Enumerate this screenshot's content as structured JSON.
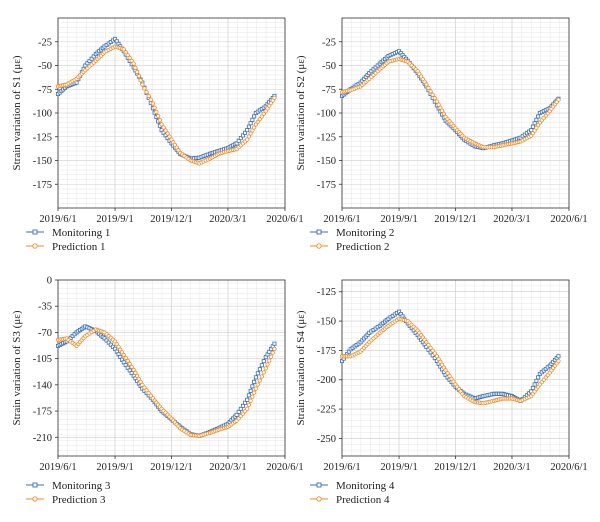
{
  "chart_data": [
    {
      "type": "line",
      "ylabel": "Strain variation of S1 (με)",
      "xlabel": "",
      "x_ticks": [
        "2019/6/1",
        "2019/9/1",
        "2019/12/1",
        "2020/3/1",
        "2020/6/1"
      ],
      "x_range": [
        "2019/6/1",
        "2020/6/1"
      ],
      "y_ticks": [
        -25,
        -50,
        -75,
        -100,
        -125,
        -150,
        -175
      ],
      "ylim": [
        -200,
        0
      ],
      "grid": true,
      "legend_position": "bottom-left",
      "series": [
        {
          "name": "Monitoring 1",
          "color": "#3a6fb5",
          "marker": "square",
          "x": [
            "2019/6/1",
            "2019/6/15",
            "2019/7/1",
            "2019/7/15",
            "2019/8/1",
            "2019/8/15",
            "2019/9/1",
            "2019/9/15",
            "2019/10/1",
            "2019/10/15",
            "2019/11/1",
            "2019/11/15",
            "2019/12/1",
            "2019/12/15",
            "2020/1/1",
            "2020/1/15",
            "2020/2/1",
            "2020/2/15",
            "2020/3/1",
            "2020/3/15",
            "2020/4/1",
            "2020/4/15",
            "2020/5/1",
            "2020/5/15"
          ],
          "y": [
            -80,
            -72,
            -68,
            -50,
            -38,
            -30,
            -22,
            -35,
            -52,
            -68,
            -95,
            -118,
            -132,
            -143,
            -148,
            -147,
            -143,
            -140,
            -137,
            -132,
            -118,
            -100,
            -93,
            -82
          ]
        },
        {
          "name": "Prediction 1",
          "color": "#f08a24",
          "marker": "circle",
          "x": [
            "2019/6/1",
            "2019/6/15",
            "2019/7/1",
            "2019/7/15",
            "2019/8/1",
            "2019/8/15",
            "2019/9/1",
            "2019/9/15",
            "2019/10/1",
            "2019/10/15",
            "2019/11/1",
            "2019/11/15",
            "2019/12/1",
            "2019/12/15",
            "2020/1/1",
            "2020/1/15",
            "2020/2/1",
            "2020/2/15",
            "2020/3/1",
            "2020/3/15",
            "2020/4/1",
            "2020/4/15",
            "2020/5/1",
            "2020/5/15"
          ],
          "y": [
            -72,
            -70,
            -64,
            -55,
            -45,
            -36,
            -30,
            -33,
            -48,
            -70,
            -90,
            -112,
            -128,
            -142,
            -150,
            -153,
            -148,
            -143,
            -140,
            -138,
            -128,
            -112,
            -98,
            -84
          ]
        }
      ]
    },
    {
      "type": "line",
      "ylabel": "Strain variation of S2 (με)",
      "xlabel": "",
      "x_ticks": [
        "2019/6/1",
        "2019/9/1",
        "2019/12/1",
        "2020/3/1",
        "2020/6/1"
      ],
      "x_range": [
        "2019/6/1",
        "2020/6/1"
      ],
      "y_ticks": [
        -25,
        -50,
        -75,
        -100,
        -125,
        -150,
        -175
      ],
      "ylim": [
        -200,
        0
      ],
      "grid": true,
      "legend_position": "bottom-left",
      "series": [
        {
          "name": "Monitoring 2",
          "color": "#3a6fb5",
          "marker": "square",
          "x": [
            "2019/6/1",
            "2019/6/15",
            "2019/7/1",
            "2019/7/15",
            "2019/8/1",
            "2019/8/15",
            "2019/9/1",
            "2019/9/15",
            "2019/10/1",
            "2019/10/15",
            "2019/11/1",
            "2019/11/15",
            "2019/12/1",
            "2019/12/15",
            "2020/1/1",
            "2020/1/15",
            "2020/2/1",
            "2020/2/15",
            "2020/3/1",
            "2020/3/15",
            "2020/4/1",
            "2020/4/15",
            "2020/5/1",
            "2020/5/15"
          ],
          "y": [
            -82,
            -75,
            -68,
            -58,
            -48,
            -40,
            -35,
            -45,
            -58,
            -72,
            -92,
            -108,
            -118,
            -128,
            -135,
            -137,
            -134,
            -132,
            -129,
            -126,
            -118,
            -100,
            -95,
            -85
          ]
        },
        {
          "name": "Prediction 2",
          "color": "#f08a24",
          "marker": "circle",
          "x": [
            "2019/6/1",
            "2019/6/15",
            "2019/7/1",
            "2019/7/15",
            "2019/8/1",
            "2019/8/15",
            "2019/9/1",
            "2019/9/15",
            "2019/10/1",
            "2019/10/15",
            "2019/11/1",
            "2019/11/15",
            "2019/12/1",
            "2019/12/15",
            "2020/1/1",
            "2020/1/15",
            "2020/2/1",
            "2020/2/15",
            "2020/3/1",
            "2020/3/15",
            "2020/4/1",
            "2020/4/15",
            "2020/5/1",
            "2020/5/15"
          ],
          "y": [
            -78,
            -76,
            -72,
            -64,
            -54,
            -46,
            -43,
            -46,
            -56,
            -70,
            -88,
            -104,
            -116,
            -126,
            -132,
            -136,
            -136,
            -134,
            -132,
            -130,
            -124,
            -110,
            -98,
            -86
          ]
        }
      ]
    },
    {
      "type": "line",
      "ylabel": "Strain variation of S3 (με)",
      "xlabel": "",
      "x_ticks": [
        "2019/6/1",
        "2019/9/1",
        "2019/12/1",
        "2020/3/1",
        "2020/6/1"
      ],
      "x_range": [
        "2019/6/1",
        "2020/6/1"
      ],
      "y_ticks": [
        0,
        -35,
        -70,
        -105,
        -140,
        -175,
        -210
      ],
      "ylim": [
        -235,
        0
      ],
      "grid": true,
      "legend_position": "bottom-left",
      "series": [
        {
          "name": "Monitoring 3",
          "color": "#3a6fb5",
          "marker": "square",
          "x": [
            "2019/6/1",
            "2019/6/15",
            "2019/7/1",
            "2019/7/15",
            "2019/8/1",
            "2019/8/15",
            "2019/9/1",
            "2019/9/15",
            "2019/10/1",
            "2019/10/15",
            "2019/11/1",
            "2019/11/15",
            "2019/12/1",
            "2019/12/15",
            "2020/1/1",
            "2020/1/15",
            "2020/2/1",
            "2020/2/15",
            "2020/3/1",
            "2020/3/15",
            "2020/4/1",
            "2020/4/15",
            "2020/5/1",
            "2020/5/15"
          ],
          "y": [
            -88,
            -82,
            -70,
            -62,
            -68,
            -78,
            -92,
            -110,
            -128,
            -145,
            -160,
            -175,
            -186,
            -196,
            -206,
            -208,
            -203,
            -198,
            -192,
            -180,
            -160,
            -130,
            -103,
            -85
          ]
        },
        {
          "name": "Prediction 3",
          "color": "#f08a24",
          "marker": "circle",
          "x": [
            "2019/6/1",
            "2019/6/15",
            "2019/7/1",
            "2019/7/15",
            "2019/8/1",
            "2019/8/15",
            "2019/9/1",
            "2019/9/15",
            "2019/10/1",
            "2019/10/15",
            "2019/11/1",
            "2019/11/15",
            "2019/12/1",
            "2019/12/15",
            "2020/1/1",
            "2020/1/15",
            "2020/2/1",
            "2020/2/15",
            "2020/3/1",
            "2020/3/15",
            "2020/4/1",
            "2020/4/15",
            "2020/5/1",
            "2020/5/15"
          ],
          "y": [
            -80,
            -78,
            -88,
            -75,
            -66,
            -70,
            -82,
            -100,
            -120,
            -140,
            -158,
            -172,
            -185,
            -198,
            -207,
            -208,
            -204,
            -200,
            -196,
            -188,
            -172,
            -145,
            -118,
            -92
          ]
        }
      ]
    },
    {
      "type": "line",
      "ylabel": "Strain variation of S4 (με)",
      "xlabel": "",
      "x_ticks": [
        "2019/6/1",
        "2019/9/1",
        "2019/12/1",
        "2020/3/1",
        "2020/6/1"
      ],
      "x_range": [
        "2019/6/1",
        "2020/6/1"
      ],
      "y_ticks": [
        -125,
        -150,
        -175,
        -200,
        -225,
        -250
      ],
      "ylim": [
        -265,
        -115
      ],
      "grid": true,
      "legend_position": "bottom-left",
      "series": [
        {
          "name": "Monitoring 4",
          "color": "#3a6fb5",
          "marker": "square",
          "x": [
            "2019/6/1",
            "2019/6/15",
            "2019/7/1",
            "2019/7/15",
            "2019/8/1",
            "2019/8/15",
            "2019/9/1",
            "2019/9/15",
            "2019/10/1",
            "2019/10/15",
            "2019/11/1",
            "2019/11/15",
            "2019/12/1",
            "2019/12/15",
            "2020/1/1",
            "2020/1/15",
            "2020/2/1",
            "2020/2/15",
            "2020/3/1",
            "2020/3/15",
            "2020/4/1",
            "2020/4/15",
            "2020/5/1",
            "2020/5/15"
          ],
          "y": [
            -184,
            -174,
            -168,
            -160,
            -154,
            -148,
            -142,
            -152,
            -162,
            -172,
            -184,
            -196,
            -206,
            -212,
            -216,
            -214,
            -212,
            -212,
            -214,
            -218,
            -210,
            -195,
            -188,
            -180
          ]
        },
        {
          "name": "Prediction 4",
          "color": "#f08a24",
          "marker": "circle",
          "x": [
            "2019/6/1",
            "2019/6/15",
            "2019/7/1",
            "2019/7/15",
            "2019/8/1",
            "2019/8/15",
            "2019/9/1",
            "2019/9/15",
            "2019/10/1",
            "2019/10/15",
            "2019/11/1",
            "2019/11/15",
            "2019/12/1",
            "2019/12/15",
            "2020/1/1",
            "2020/1/15",
            "2020/2/1",
            "2020/2/15",
            "2020/3/1",
            "2020/3/15",
            "2020/4/1",
            "2020/4/15",
            "2020/5/1",
            "2020/5/15"
          ],
          "y": [
            -180,
            -180,
            -176,
            -168,
            -160,
            -154,
            -148,
            -150,
            -158,
            -168,
            -180,
            -192,
            -204,
            -214,
            -219,
            -220,
            -218,
            -216,
            -216,
            -218,
            -214,
            -204,
            -194,
            -184
          ]
        }
      ]
    }
  ]
}
